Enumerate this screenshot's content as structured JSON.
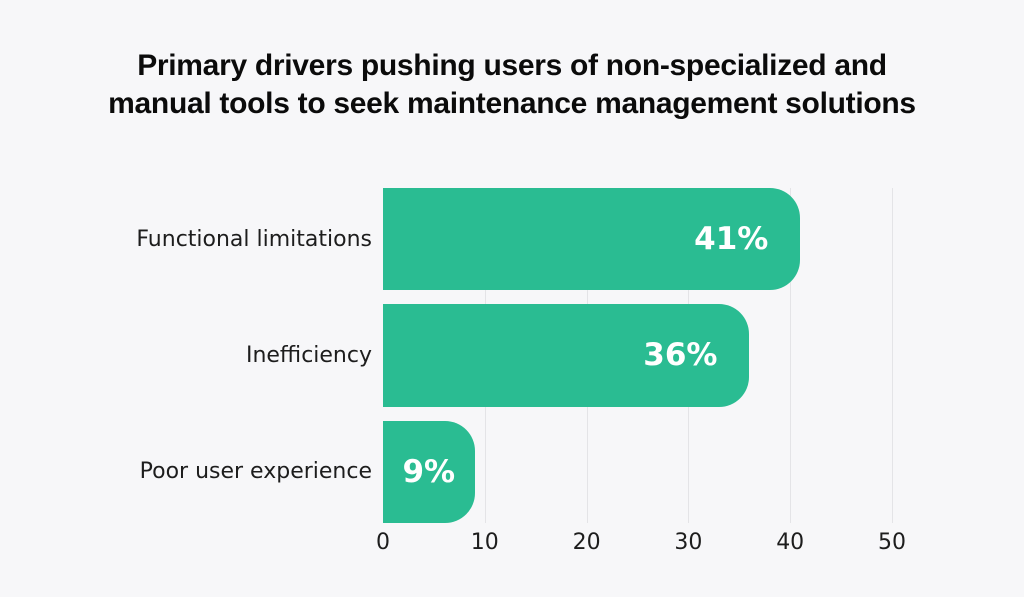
{
  "title": {
    "lines": [
      "Primary drivers pushing users of non-specialized and",
      "manual tools to seek maintenance management solutions"
    ]
  },
  "chart_data": {
    "type": "bar",
    "orientation": "horizontal",
    "title": "Primary drivers pushing users of non-specialized and manual tools to seek maintenance management solutions",
    "categories": [
      "Functional limitations",
      "Inefficiency",
      "Poor user experience"
    ],
    "values": [
      41,
      36,
      9
    ],
    "value_labels": [
      "41%",
      "36%",
      "9%"
    ],
    "x_ticks": [
      0,
      10,
      20,
      30,
      40,
      50
    ],
    "xlim": [
      0,
      50
    ],
    "xlabel": "",
    "ylabel": "",
    "grid": "vertical",
    "legend": "none",
    "colors": {
      "bar": "#2abc92",
      "value_label": "#ffffff",
      "background": "#f7f7f9",
      "gridline": "#e4e4e7",
      "text": "#1d1d1d",
      "title_text": "#0b0b0b"
    }
  }
}
